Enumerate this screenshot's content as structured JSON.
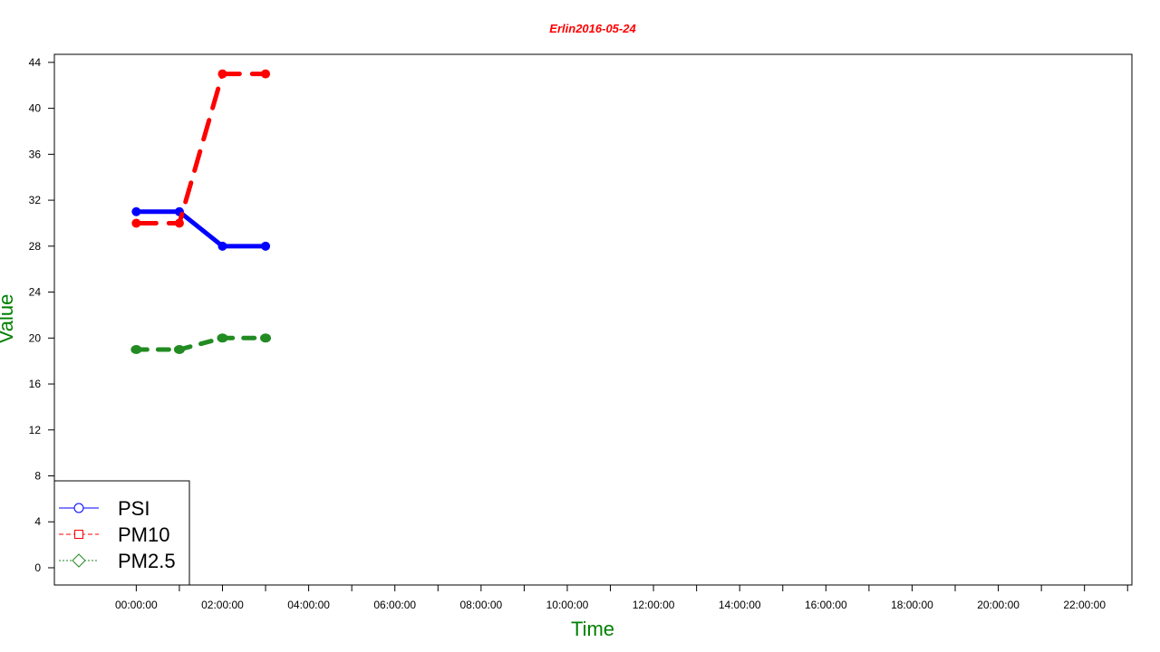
{
  "chart_data": {
    "type": "line",
    "title": "Erlin2016-05-24",
    "xlabel": "Time",
    "ylabel": "Value",
    "x_ticks": [
      "00:00:00",
      "02:00:00",
      "04:00:00",
      "06:00:00",
      "08:00:00",
      "10:00:00",
      "12:00:00",
      "14:00:00",
      "16:00:00",
      "18:00:00",
      "20:00:00",
      "22:00:00"
    ],
    "y_ticks": [
      0,
      4,
      8,
      12,
      16,
      20,
      24,
      28,
      32,
      36,
      40,
      44
    ],
    "xlim_hours": [
      -1.9,
      23.1
    ],
    "ylim": [
      -1.5,
      44.7
    ],
    "x_hours": [
      0,
      1,
      2,
      3
    ],
    "series": [
      {
        "name": "PSI",
        "values": [
          31,
          31,
          28,
          28
        ],
        "color": "#0000ff",
        "dash": "solid",
        "marker": "circle"
      },
      {
        "name": "PM10",
        "values": [
          30,
          30,
          43,
          43
        ],
        "color": "#ff0000",
        "dash": "dashed",
        "marker": "square"
      },
      {
        "name": "PM2.5",
        "values": [
          19,
          19,
          20,
          20
        ],
        "color": "#228b22",
        "dash": "dotted",
        "marker": "diamond"
      }
    ],
    "legend_position": "bottom-left",
    "title_color": "#ff0000",
    "axis_title_color": "#008000"
  }
}
